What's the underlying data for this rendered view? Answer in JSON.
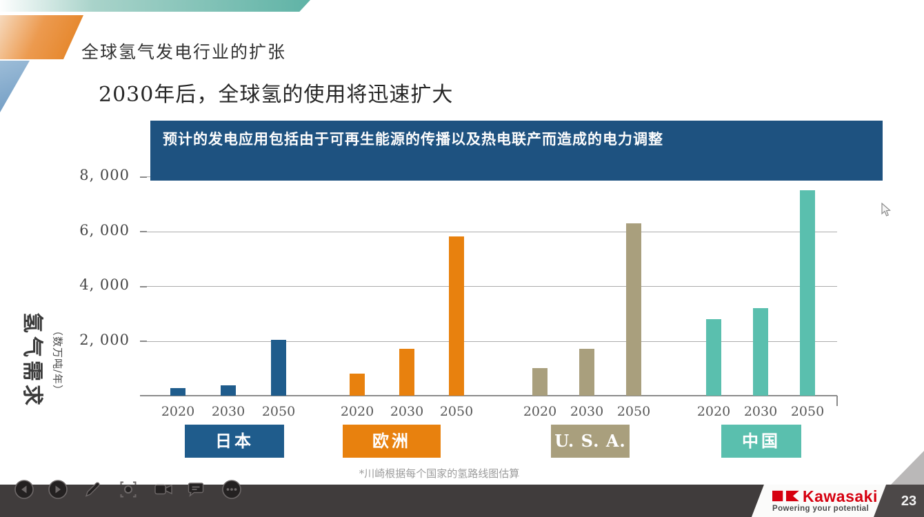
{
  "slide": {
    "kicker": "全球氢气发电行业的扩张",
    "headline": "2030年后，全球氢的使用将迅速扩大",
    "banner_text": "预计的发电应用包括由于可再生能源的传播以及热电联产而造成的电力调整",
    "footnote": "*川崎根据每个国家的氢路线图估算",
    "page_number": "23"
  },
  "chart_data": {
    "type": "bar",
    "title": "",
    "ylabel": "氢气需求",
    "ylabel_unit": "（数万吨/年）",
    "ylim": [
      0,
      8000
    ],
    "grid": true,
    "legend_position": "bottom",
    "yticks": [
      {
        "value": 2000,
        "label": "2, 000"
      },
      {
        "value": 4000,
        "label": "4, 000"
      },
      {
        "value": 6000,
        "label": "6, 000"
      },
      {
        "value": 8000,
        "label": "8, 000"
      }
    ],
    "categories": [
      "2020",
      "2030",
      "2050"
    ],
    "series": [
      {
        "name": "日本",
        "slug": "japan",
        "color": "#1f5c8c",
        "values": [
          280,
          380,
          2050
        ]
      },
      {
        "name": "欧洲",
        "slug": "europe",
        "color": "#e8810e",
        "values": [
          800,
          1700,
          5800
        ]
      },
      {
        "name": "U. S. A.",
        "slug": "usa",
        "color": "#a99f7d",
        "values": [
          1000,
          1700,
          6300
        ]
      },
      {
        "name": "中国",
        "slug": "china",
        "color": "#5abfae",
        "values": [
          2800,
          3200,
          7500
        ]
      }
    ]
  },
  "toolbar": {
    "buttons": [
      {
        "id": "previous",
        "icon": "chevron-left-circle-icon"
      },
      {
        "id": "next",
        "icon": "chevron-right-circle-icon"
      },
      {
        "id": "annotate",
        "icon": "pencil-icon"
      },
      {
        "id": "laser-pointer",
        "icon": "focus-target-icon"
      },
      {
        "id": "camera",
        "icon": "video-camera-icon"
      },
      {
        "id": "comments",
        "icon": "chat-bubble-icon"
      },
      {
        "id": "more-options",
        "icon": "ellipsis-circle-icon"
      }
    ]
  },
  "branding": {
    "logo_text": "Kawasaki",
    "tagline": "Powering your potential",
    "logo_color": "#d6000f"
  },
  "colors": {
    "banner_bg": "#1e5280",
    "gridline": "#ababab",
    "axis": "#8a8a8a",
    "toolbar_bg": "#403c3c"
  }
}
